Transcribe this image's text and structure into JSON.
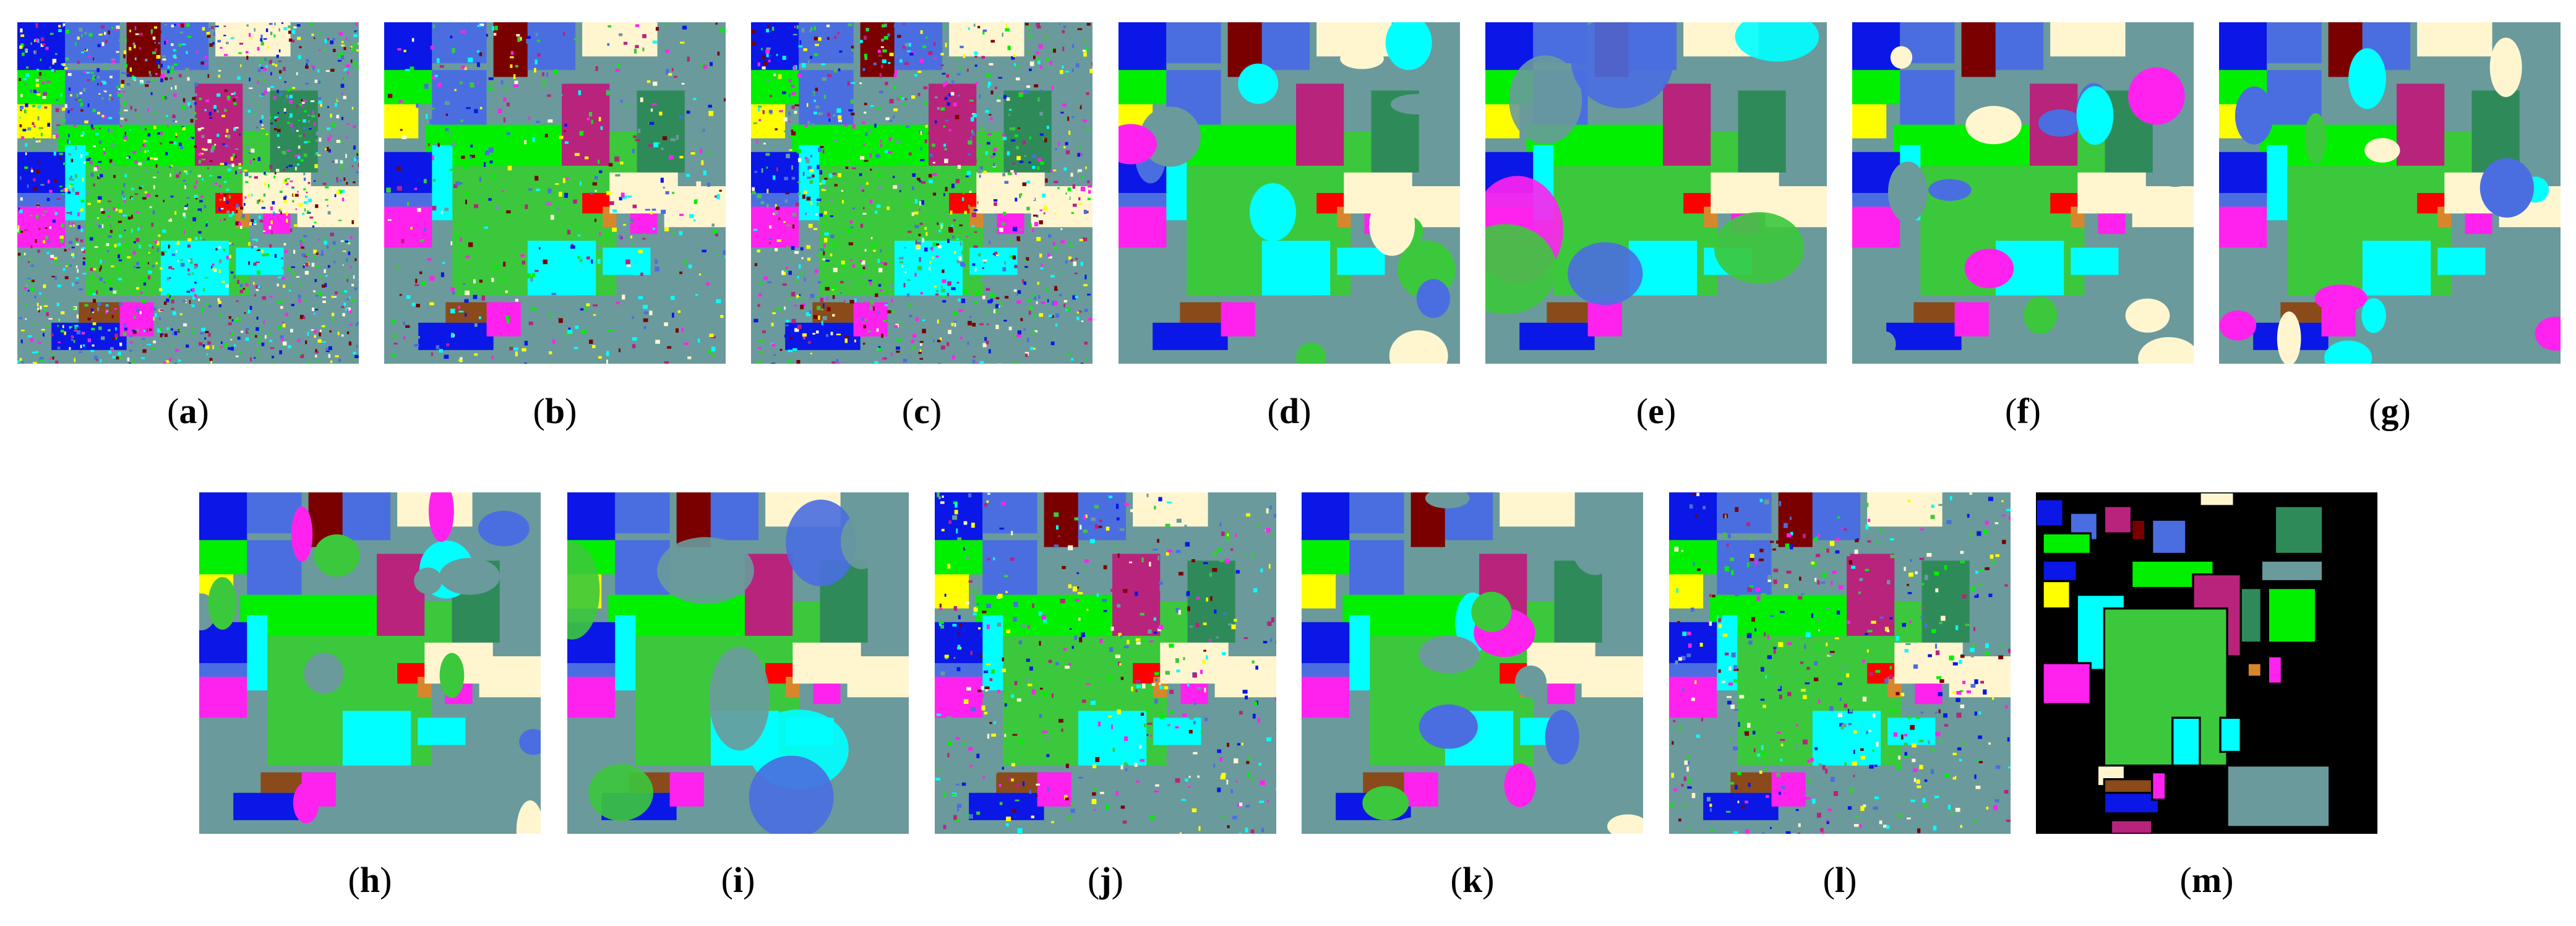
{
  "figure": {
    "panels": [
      {
        "id": "a",
        "caption": "a",
        "style": "noisy"
      },
      {
        "id": "b",
        "caption": "b",
        "style": "semi"
      },
      {
        "id": "c",
        "caption": "c",
        "style": "noisy2"
      },
      {
        "id": "d",
        "caption": "d",
        "style": "smooth"
      },
      {
        "id": "e",
        "caption": "e",
        "style": "blob"
      },
      {
        "id": "f",
        "caption": "f",
        "style": "smooth"
      },
      {
        "id": "g",
        "caption": "g",
        "style": "smooth"
      },
      {
        "id": "h",
        "caption": "h",
        "style": "smooth"
      },
      {
        "id": "i",
        "caption": "i",
        "style": "blob"
      },
      {
        "id": "j",
        "caption": "j",
        "style": "semi"
      },
      {
        "id": "k",
        "caption": "k",
        "style": "smooth"
      },
      {
        "id": "l",
        "caption": "l",
        "style": "semi"
      },
      {
        "id": "m",
        "caption": "m",
        "style": "groundtruth"
      }
    ]
  },
  "palette": {
    "background": "#000000",
    "slate": "#6a9a9c",
    "green": "#3cc83c",
    "lime": "#00f000",
    "magenta": "#b8237c",
    "pink": "#ff22ee",
    "cyan": "#00ffff",
    "blue": "#0a17e6",
    "lightblue": "#4a6ee0",
    "darkgreen": "#2f8a5a",
    "cream": "#fff6d0",
    "yellow": "#ffff00",
    "brown": "#8a4a1a",
    "darkred": "#7a0000",
    "red": "#ff0000",
    "orange": "#d8862e"
  }
}
